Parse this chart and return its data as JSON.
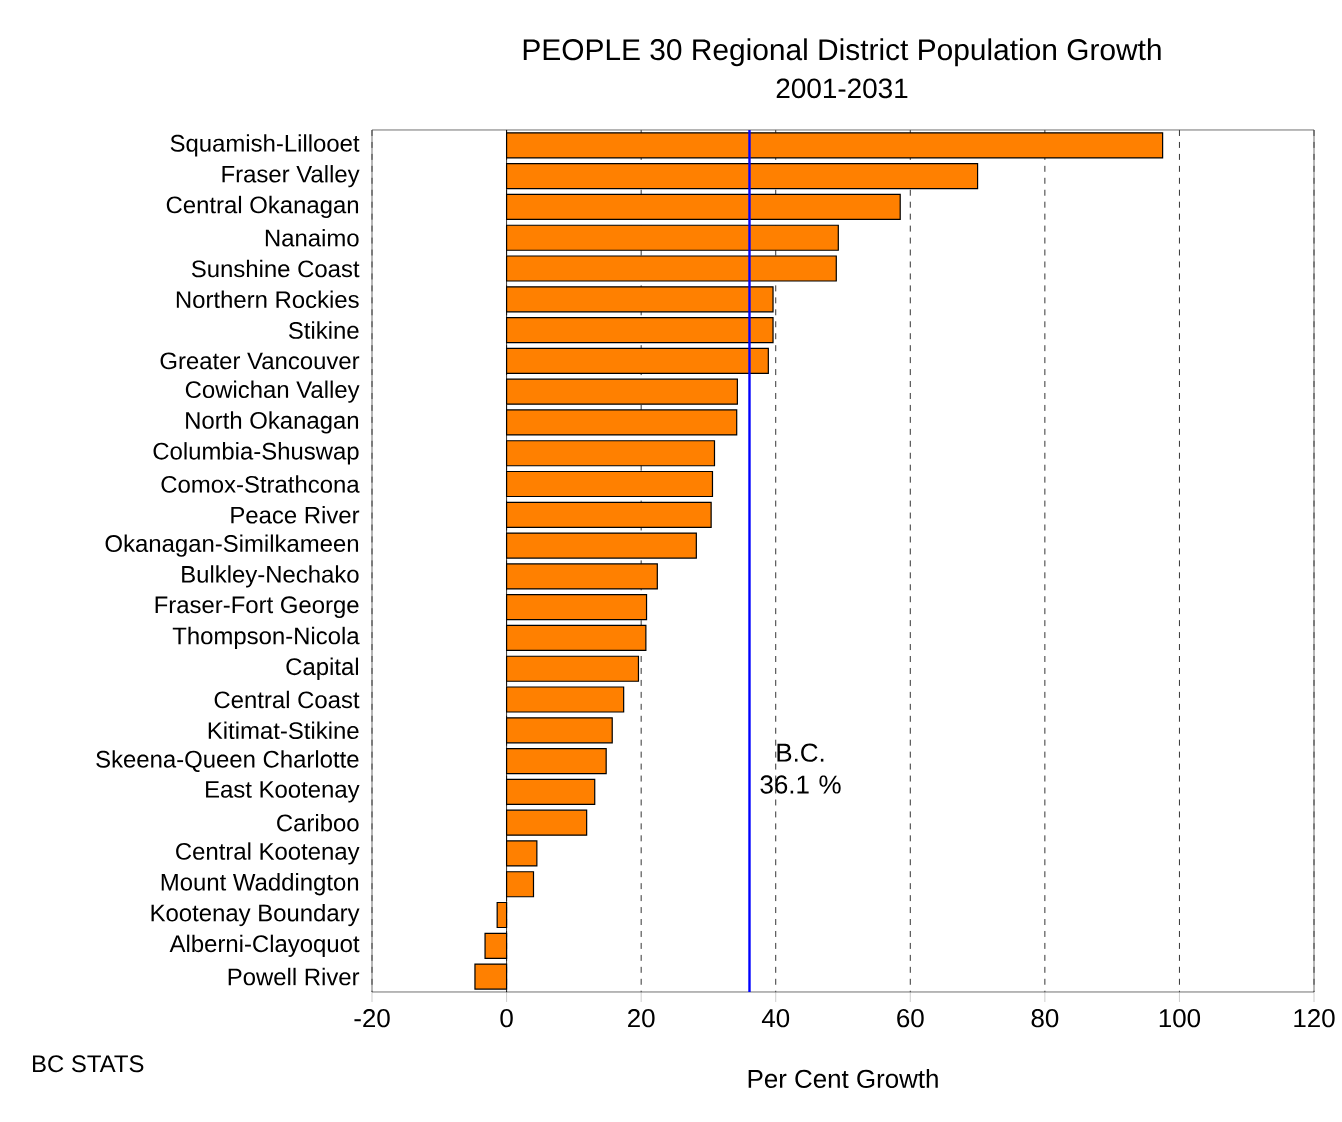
{
  "chart_data": {
    "type": "bar",
    "orientation": "horizontal",
    "title": "PEOPLE 30 Regional District Population Growth",
    "subtitle": "2001-2031",
    "xlabel": "Per Cent Growth",
    "categories": [
      "Squamish-Lillooet",
      "Fraser Valley",
      "Central Okanagan",
      "Nanaimo",
      "Sunshine Coast",
      "Northern Rockies",
      "Stikine",
      "Greater Vancouver",
      "Cowichan Valley",
      "North Okanagan",
      "Columbia-Shuswap",
      "Comox-Strathcona",
      "Peace River",
      "Okanagan-Similkameen",
      "Bulkley-Nechako",
      "Fraser-Fort George",
      "Thompson-Nicola",
      "Capital",
      "Central Coast",
      "Kitimat-Stikine",
      "Skeena-Queen Charlotte",
      "East Kootenay",
      "Cariboo",
      "Central Kootenay",
      "Mount Waddington",
      "Kootenay Boundary",
      "Alberni-Clayoquot",
      "Powell River"
    ],
    "values": [
      97.5,
      70.0,
      58.5,
      49.3,
      49.0,
      39.6,
      39.6,
      38.9,
      34.3,
      34.2,
      30.9,
      30.6,
      30.4,
      28.2,
      22.4,
      20.8,
      20.7,
      19.6,
      17.4,
      15.7,
      14.8,
      13.1,
      11.9,
      4.5,
      4.0,
      -1.4,
      -3.2,
      -4.7
    ],
    "color": "#ff8000",
    "xlim": [
      -20,
      120
    ],
    "xticks": [
      -20,
      0,
      20,
      40,
      60,
      80,
      100,
      120
    ],
    "grid": "x",
    "ref_lines": [
      {
        "axis": "x",
        "value": 36.1,
        "label": "B.C. 36.1 %",
        "color": "#0000ff"
      }
    ],
    "annotations": [
      "BC STATS"
    ]
  }
}
